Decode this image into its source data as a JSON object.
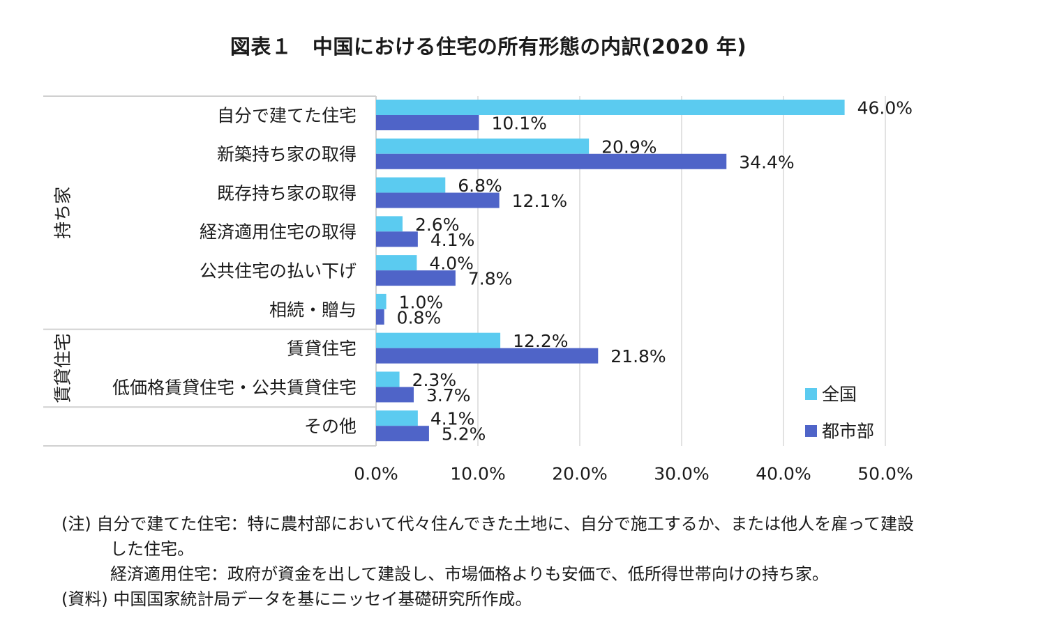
{
  "title": "図表１　中国における住宅の所有形態の内訳(2020 年)",
  "chart_data": {
    "type": "bar",
    "orientation": "horizontal",
    "categories": [
      "自分で建てた住宅",
      "新築持ち家の取得",
      "既存持ち家の取得",
      "経済適用住宅の取得",
      "公共住宅の払い下げ",
      "相続・贈与",
      "賃貸住宅",
      "低価格賃貸住宅・公共賃貸住宅",
      "その他"
    ],
    "groups": [
      {
        "label": "持ち家",
        "start": 0,
        "end": 5
      },
      {
        "label": "賃貸住宅",
        "start": 6,
        "end": 7
      },
      {
        "label": "",
        "start": 8,
        "end": 8
      }
    ],
    "series": [
      {
        "name": "全国",
        "color": "#5BCBF0",
        "values": [
          46.0,
          20.9,
          6.8,
          2.6,
          4.0,
          1.0,
          12.2,
          2.3,
          4.1
        ],
        "labels": [
          "46.0%",
          "20.9%",
          "6.8%",
          "2.6%",
          "4.0%",
          "1.0%",
          "12.2%",
          "2.3%",
          "4.1%"
        ]
      },
      {
        "name": "都市部",
        "color": "#4F64C8",
        "values": [
          10.1,
          34.4,
          12.1,
          4.1,
          7.8,
          0.8,
          21.8,
          3.7,
          5.2
        ],
        "labels": [
          "10.1%",
          "34.4%",
          "12.1%",
          "4.1%",
          "7.8%",
          "0.8%",
          "21.8%",
          "3.7%",
          "5.2%"
        ]
      }
    ],
    "xlim": [
      0,
      50
    ],
    "xticks": [
      0,
      10,
      20,
      30,
      40,
      50
    ],
    "xtick_labels": [
      "0.0%",
      "10.0%",
      "20.0%",
      "30.0%",
      "40.0%",
      "50.0%"
    ],
    "grid": "vertical",
    "legend": "bottom-right"
  },
  "notes": [
    "(注)  自分で建てた住宅：特に農村部において代々住んできた土地に、自分で施工するか、または他人を雇って建設",
    "した住宅。",
    "経済適用住宅：政府が資金を出して建設し、市場価格よりも安価で、低所得世帯向けの持ち家。",
    "(資料)  中国国家統計局データを基にニッセイ基礎研究所作成。"
  ]
}
